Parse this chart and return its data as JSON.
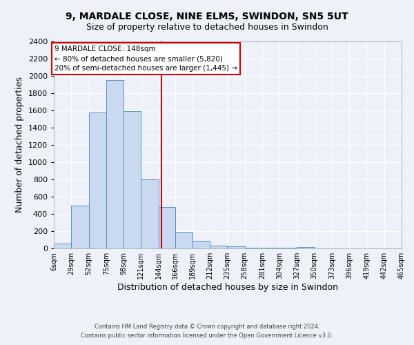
{
  "title": "9, MARDALE CLOSE, NINE ELMS, SWINDON, SN5 5UT",
  "subtitle": "Size of property relative to detached houses in Swindon",
  "xlabel": "Distribution of detached houses by size in Swindon",
  "ylabel": "Number of detached properties",
  "bar_color": "#c9d9ef",
  "bar_edge_color": "#5b8fc9",
  "background_color": "#eef2f8",
  "grid_color": "#ffffff",
  "bin_edges": [
    6,
    29,
    52,
    75,
    98,
    121,
    144,
    166,
    189,
    212,
    235,
    258,
    281,
    304,
    327,
    350,
    373,
    396,
    419,
    442,
    465
  ],
  "bin_labels": [
    "6sqm",
    "29sqm",
    "52sqm",
    "75sqm",
    "98sqm",
    "121sqm",
    "144sqm",
    "166sqm",
    "189sqm",
    "212sqm",
    "235sqm",
    "258sqm",
    "281sqm",
    "304sqm",
    "327sqm",
    "350sqm",
    "373sqm",
    "396sqm",
    "419sqm",
    "442sqm",
    "465sqm"
  ],
  "bar_heights": [
    55,
    500,
    1580,
    1950,
    1590,
    800,
    480,
    190,
    90,
    35,
    25,
    5,
    5,
    5,
    20,
    0,
    0,
    0,
    0,
    0
  ],
  "property_value": 148,
  "vline_color": "#cc0000",
  "annotation_title": "9 MARDALE CLOSE: 148sqm",
  "annotation_line1": "← 80% of detached houses are smaller (5,820)",
  "annotation_line2": "20% of semi-detached houses are larger (1,445) →",
  "annotation_box_color": "#ffffff",
  "annotation_box_edge": "#cc0000",
  "ylim": [
    0,
    2400
  ],
  "ytick_interval": 200,
  "footer1": "Contains HM Land Registry data © Crown copyright and database right 2024.",
  "footer2": "Contains public sector information licensed under the Open Government Licence v3.0."
}
